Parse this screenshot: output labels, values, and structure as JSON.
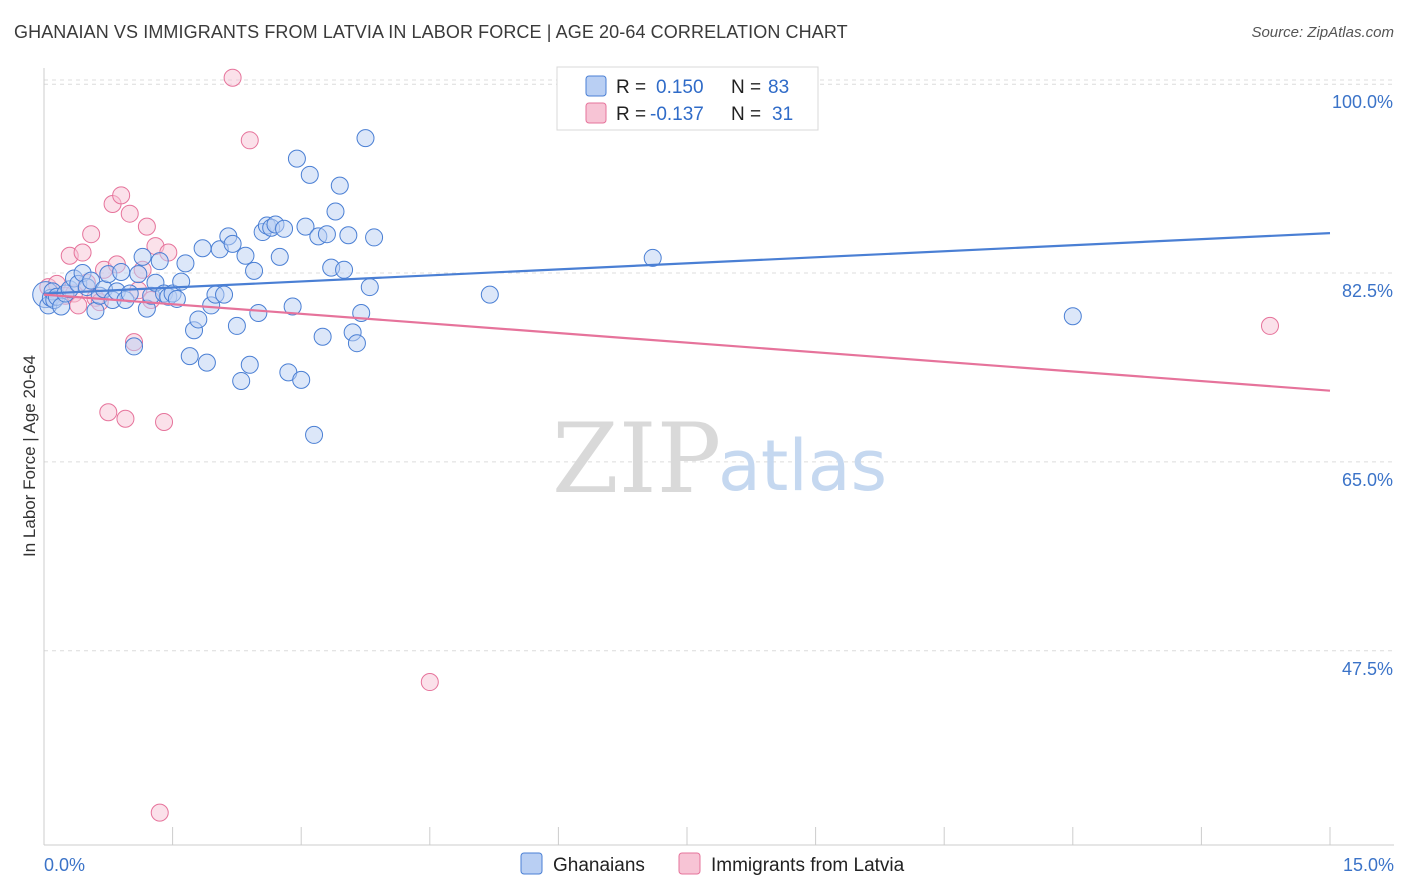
{
  "title": "GHANAIAN VS IMMIGRANTS FROM LATVIA IN LABOR FORCE | AGE 20-64 CORRELATION CHART",
  "source": "Source: ZipAtlas.com",
  "watermark": {
    "zip": "ZIP",
    "atlas": "atlas"
  },
  "colors": {
    "blue": "#4a7fd4",
    "blue_fill": "#b9cff3",
    "pink": "#e6739b",
    "pink_fill": "#f7c4d5",
    "grid": "#dcdcdc",
    "axis_text": "#3b73c8"
  },
  "legend": {
    "rows": [
      {
        "r_label": "R =",
        "r_value": "0.150",
        "n_label": "N =",
        "n_value": "83"
      },
      {
        "r_label": "R =",
        "r_value": "-0.137",
        "n_label": "N =",
        "n_value": "31"
      }
    ]
  },
  "chart_data": {
    "type": "scatter",
    "title": "GHANAIAN VS IMMIGRANTS FROM LATVIA IN LABOR FORCE | AGE 20-64 CORRELATION CHART",
    "xlabel": "",
    "ylabel": "In Labor Force | Age 20-64",
    "xlim": [
      0,
      15
    ],
    "ylim": [
      29.5,
      101.5
    ],
    "x_tick_labels": [
      "0.0%",
      "15.0%"
    ],
    "y_ticks": [
      47.5,
      65.0,
      82.5,
      100.0
    ],
    "y_tick_labels": [
      "47.5%",
      "65.0%",
      "82.5%",
      "100.0%"
    ],
    "grid": "horizontal dashed",
    "legend_position": "top-center",
    "series": [
      {
        "name": "Ghanaians",
        "r": 0.15,
        "n": 83,
        "trend": [
          [
            0,
            80.6
          ],
          [
            15,
            86.2
          ]
        ],
        "points": [
          [
            0.02,
            80.5
          ],
          [
            0.05,
            79.5
          ],
          [
            0.08,
            80.2
          ],
          [
            0.1,
            80.8
          ],
          [
            0.12,
            80.0
          ],
          [
            0.15,
            80.3
          ],
          [
            0.2,
            79.4
          ],
          [
            0.25,
            80.6
          ],
          [
            0.3,
            81.0
          ],
          [
            0.35,
            82.0
          ],
          [
            0.4,
            81.5
          ],
          [
            0.45,
            82.5
          ],
          [
            0.5,
            81.2
          ],
          [
            0.55,
            81.8
          ],
          [
            0.6,
            79.0
          ],
          [
            0.65,
            80.4
          ],
          [
            0.7,
            81.0
          ],
          [
            0.75,
            82.4
          ],
          [
            0.8,
            80.0
          ],
          [
            0.85,
            80.8
          ],
          [
            0.9,
            82.6
          ],
          [
            0.95,
            80.0
          ],
          [
            1.0,
            80.6
          ],
          [
            1.05,
            75.7
          ],
          [
            1.1,
            82.4
          ],
          [
            1.15,
            84.0
          ],
          [
            1.2,
            79.2
          ],
          [
            1.25,
            80.4
          ],
          [
            1.3,
            81.6
          ],
          [
            1.35,
            83.6
          ],
          [
            1.4,
            80.6
          ],
          [
            1.45,
            80.3
          ],
          [
            1.5,
            80.6
          ],
          [
            1.55,
            80.1
          ],
          [
            1.6,
            81.7
          ],
          [
            1.65,
            83.4
          ],
          [
            1.7,
            74.8
          ],
          [
            1.75,
            77.2
          ],
          [
            1.8,
            78.2
          ],
          [
            1.85,
            84.8
          ],
          [
            1.9,
            74.2
          ],
          [
            1.95,
            79.5
          ],
          [
            2.0,
            80.5
          ],
          [
            2.05,
            84.7
          ],
          [
            2.1,
            80.5
          ],
          [
            2.15,
            85.9
          ],
          [
            2.2,
            85.2
          ],
          [
            2.25,
            77.6
          ],
          [
            2.3,
            72.5
          ],
          [
            2.35,
            84.1
          ],
          [
            2.4,
            74.0
          ],
          [
            2.45,
            82.7
          ],
          [
            2.5,
            78.8
          ],
          [
            2.55,
            86.3
          ],
          [
            2.6,
            86.9
          ],
          [
            2.65,
            86.7
          ],
          [
            2.7,
            87.0
          ],
          [
            2.75,
            84.0
          ],
          [
            2.8,
            86.6
          ],
          [
            2.85,
            73.3
          ],
          [
            2.9,
            79.4
          ],
          [
            2.95,
            93.1
          ],
          [
            3.0,
            72.6
          ],
          [
            3.05,
            86.8
          ],
          [
            3.1,
            91.6
          ],
          [
            3.15,
            67.5
          ],
          [
            3.2,
            85.9
          ],
          [
            3.25,
            76.6
          ],
          [
            3.3,
            86.1
          ],
          [
            3.35,
            83.0
          ],
          [
            3.4,
            88.2
          ],
          [
            3.45,
            90.6
          ],
          [
            3.5,
            82.8
          ],
          [
            3.55,
            86.0
          ],
          [
            3.6,
            77.0
          ],
          [
            3.65,
            76.0
          ],
          [
            3.7,
            78.8
          ],
          [
            3.75,
            95.0
          ],
          [
            3.8,
            81.2
          ],
          [
            3.85,
            85.8
          ],
          [
            5.2,
            80.5
          ],
          [
            7.1,
            83.9
          ],
          [
            12.0,
            78.5
          ]
        ]
      },
      {
        "name": "Immigrants from Latvia",
        "r": -0.137,
        "n": 31,
        "trend": [
          [
            0,
            80.5
          ],
          [
            15,
            71.6
          ]
        ],
        "points": [
          [
            0.05,
            81.2
          ],
          [
            0.15,
            81.5
          ],
          [
            0.25,
            80.4
          ],
          [
            0.3,
            84.1
          ],
          [
            0.35,
            80.6
          ],
          [
            0.4,
            79.5
          ],
          [
            0.45,
            84.4
          ],
          [
            0.5,
            81.6
          ],
          [
            0.55,
            86.1
          ],
          [
            0.6,
            80.2
          ],
          [
            0.65,
            79.8
          ],
          [
            0.7,
            82.8
          ],
          [
            0.75,
            69.6
          ],
          [
            0.8,
            88.9
          ],
          [
            0.85,
            83.3
          ],
          [
            0.9,
            89.7
          ],
          [
            0.95,
            69.0
          ],
          [
            1.0,
            88.0
          ],
          [
            1.05,
            76.1
          ],
          [
            1.1,
            80.9
          ],
          [
            1.15,
            82.8
          ],
          [
            1.2,
            86.8
          ],
          [
            1.25,
            80.0
          ],
          [
            1.3,
            85.0
          ],
          [
            1.35,
            32.5
          ],
          [
            1.4,
            68.7
          ],
          [
            1.45,
            84.4
          ],
          [
            2.2,
            100.6
          ],
          [
            2.4,
            94.8
          ],
          [
            4.5,
            44.6
          ],
          [
            14.3,
            77.6
          ]
        ]
      }
    ]
  },
  "bottom_legend": [
    {
      "label": "Ghanaians"
    },
    {
      "label": "Immigrants from Latvia"
    }
  ]
}
